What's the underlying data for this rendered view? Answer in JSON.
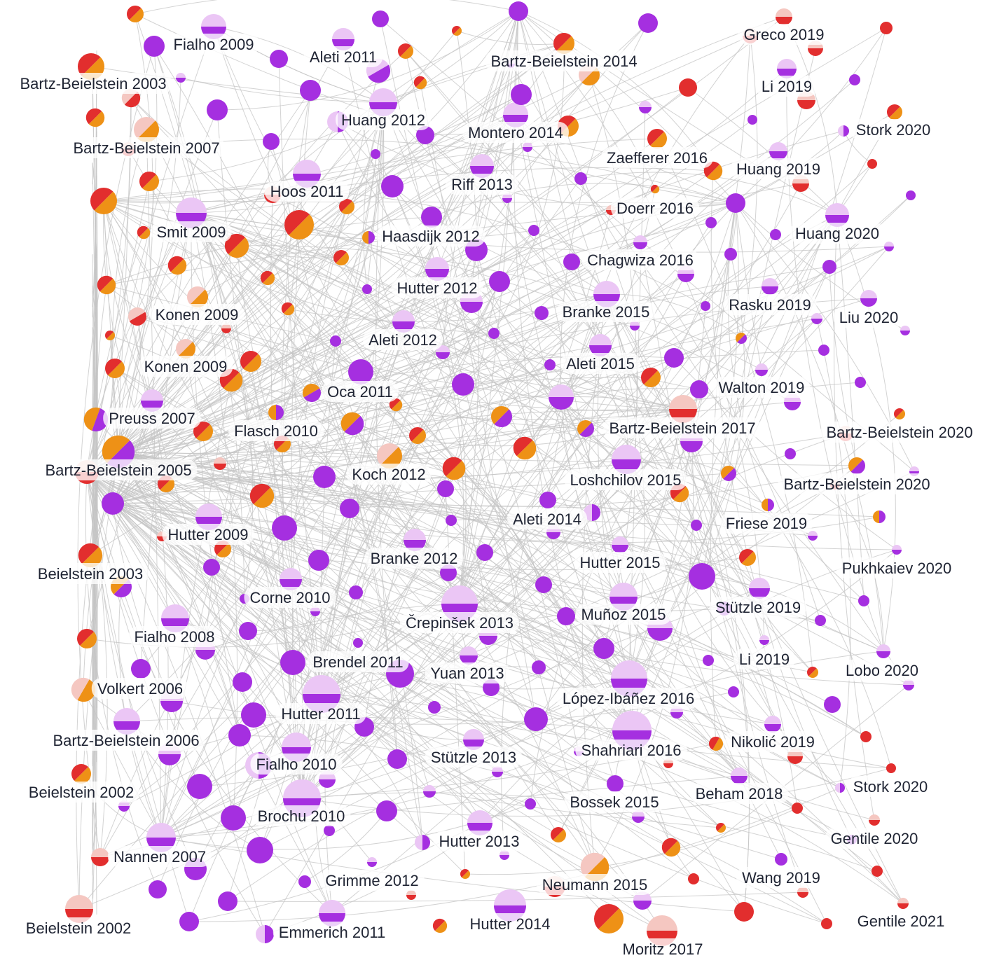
{
  "colors": {
    "purple": "#a52fe0",
    "purple_light": "#ebc6f5",
    "red": "#e22e2e",
    "orange": "#ee9116",
    "pink": "#f5c7c1",
    "edge": "#c4c4c4"
  },
  "labels": [
    {
      "text": "Fialho 2009"
    },
    {
      "text": "Aleti 2011"
    },
    {
      "text": "Bartz-Beielstein 2003"
    },
    {
      "text": "Greco 2019"
    },
    {
      "text": "Bartz-Beielstein 2014"
    },
    {
      "text": "Li 2019"
    },
    {
      "text": "Huang 2012"
    },
    {
      "text": "Montero 2014"
    },
    {
      "text": "Stork 2020"
    },
    {
      "text": "Bartz-Beielstein 2007"
    },
    {
      "text": "Zaefferer 2016"
    },
    {
      "text": "Huang 2019"
    },
    {
      "text": "Hoos 2011"
    },
    {
      "text": "Riff 2013"
    },
    {
      "text": "Doerr 2016"
    },
    {
      "text": "Smit 2009"
    },
    {
      "text": "Haasdijk 2012"
    },
    {
      "text": "Huang 2020"
    },
    {
      "text": "Chagwiza 2016"
    },
    {
      "text": "Hutter 2012"
    },
    {
      "text": "Rasku 2019"
    },
    {
      "text": "Konen 2009"
    },
    {
      "text": "Branke 2015"
    },
    {
      "text": "Liu 2020"
    },
    {
      "text": "Aleti 2012"
    },
    {
      "text": "Konen 2009"
    },
    {
      "text": "Aleti 2015"
    },
    {
      "text": "Oca 2011"
    },
    {
      "text": "Walton 2019"
    },
    {
      "text": "Preuss 2007"
    },
    {
      "text": "Flasch 2010"
    },
    {
      "text": "Bartz-Beielstein 2017"
    },
    {
      "text": "Bartz-Beielstein 2020"
    },
    {
      "text": "Bartz-Beielstein 2005"
    },
    {
      "text": "Koch 2012"
    },
    {
      "text": "Loshchilov 2015"
    },
    {
      "text": "Bartz-Beielstein 2020"
    },
    {
      "text": "Aleti 2014"
    },
    {
      "text": "Friese 2019"
    },
    {
      "text": "Hutter 2009"
    },
    {
      "text": "Branke 2012"
    },
    {
      "text": "Hutter 2015"
    },
    {
      "text": "Pukhkaiev 2020"
    },
    {
      "text": "Beielstein 2003"
    },
    {
      "text": "Corne 2010"
    },
    {
      "text": "Stützle 2019"
    },
    {
      "text": "Črepinšek 2013"
    },
    {
      "text": "Muñoz 2015"
    },
    {
      "text": "Fialho 2008"
    },
    {
      "text": "Brendel 2011"
    },
    {
      "text": "Li 2019"
    },
    {
      "text": "Yuan 2013"
    },
    {
      "text": "Lobo 2020"
    },
    {
      "text": "Volkert 2006"
    },
    {
      "text": "López-Ibáñez 2016"
    },
    {
      "text": "Hutter 2011"
    },
    {
      "text": "Bartz-Beielstein 2006"
    },
    {
      "text": "Nikolić 2019"
    },
    {
      "text": "Shahriari 2016"
    },
    {
      "text": "Fialho 2010"
    },
    {
      "text": "Stützle 2013"
    },
    {
      "text": "Beielstein 2002"
    },
    {
      "text": "Stork 2020"
    },
    {
      "text": "Beham 2018"
    },
    {
      "text": "Bossek 2015"
    },
    {
      "text": "Brochu 2010"
    },
    {
      "text": "Gentile 2020"
    },
    {
      "text": "Hutter 2013"
    },
    {
      "text": "Nannen 2007"
    },
    {
      "text": "Grimme 2012"
    },
    {
      "text": "Neumann 2015"
    },
    {
      "text": "Wang 2019"
    },
    {
      "text": "Beielstein 2002"
    },
    {
      "text": "Emmerich 2011"
    },
    {
      "text": "Hutter 2014"
    },
    {
      "text": "Gentile 2021"
    },
    {
      "text": "Moritz 2017"
    }
  ]
}
